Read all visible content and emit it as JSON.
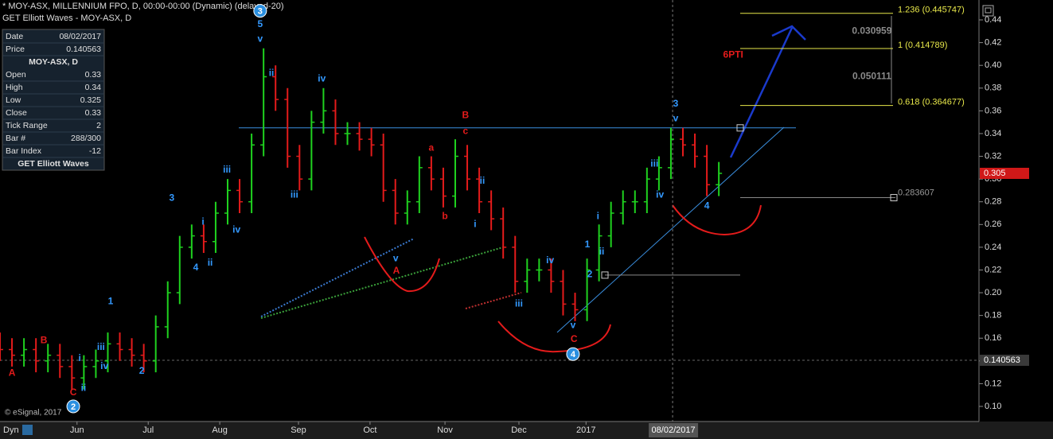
{
  "chart_data": {
    "type": "ohlc",
    "title": "* MOY-ASX, MILLENNIUM FPO, D, 00:00-00:00 (Dynamic) (delayed-20)",
    "subtitle": "GET Elliott Waves - MOY-ASX, D",
    "x": [
      0,
      3.5,
      7,
      10.5,
      14,
      17.5,
      21,
      24.5,
      28,
      31.5,
      35,
      38.5,
      42,
      45.5,
      49,
      52.5,
      56,
      59.5,
      63,
      66.5,
      70,
      73.5,
      77,
      80.5,
      84,
      87.5,
      91,
      94.5,
      98,
      101.5,
      105,
      108.5,
      112,
      115.5,
      119,
      122.5,
      126,
      129.5,
      133,
      136.5,
      140,
      143.5,
      147,
      150.5,
      154,
      157.5,
      161,
      164.5,
      168,
      171.5,
      175,
      178.5,
      182,
      185.5,
      189,
      192.5,
      196,
      199.5,
      203,
      206.5,
      210
    ],
    "open": [
      0.155,
      0.15,
      0.145,
      0.15,
      0.14,
      0.145,
      0.135,
      0.125,
      0.135,
      0.14,
      0.155,
      0.15,
      0.145,
      0.14,
      0.17,
      0.2,
      0.24,
      0.25,
      0.245,
      0.27,
      0.29,
      0.28,
      0.33,
      0.39,
      0.37,
      0.32,
      0.3,
      0.35,
      0.36,
      0.34,
      0.34,
      0.335,
      0.33,
      0.29,
      0.27,
      0.28,
      0.31,
      0.3,
      0.285,
      0.32,
      0.3,
      0.28,
      0.265,
      0.24,
      0.21,
      0.22,
      0.22,
      0.21,
      0.19,
      0.185,
      0.22,
      0.25,
      0.27,
      0.28,
      0.28,
      0.3,
      0.31,
      0.335,
      0.33,
      0.32,
      0.295
    ],
    "high": [
      0.165,
      0.16,
      0.16,
      0.16,
      0.155,
      0.155,
      0.145,
      0.145,
      0.15,
      0.165,
      0.165,
      0.16,
      0.155,
      0.18,
      0.21,
      0.25,
      0.26,
      0.26,
      0.28,
      0.3,
      0.3,
      0.34,
      0.415,
      0.4,
      0.38,
      0.33,
      0.36,
      0.38,
      0.37,
      0.35,
      0.35,
      0.345,
      0.34,
      0.3,
      0.29,
      0.32,
      0.32,
      0.31,
      0.335,
      0.33,
      0.31,
      0.29,
      0.275,
      0.25,
      0.23,
      0.23,
      0.23,
      0.22,
      0.2,
      0.23,
      0.26,
      0.28,
      0.29,
      0.29,
      0.31,
      0.32,
      0.345,
      0.345,
      0.34,
      0.33,
      0.315
    ],
    "low": [
      0.14,
      0.135,
      0.135,
      0.13,
      0.13,
      0.125,
      0.115,
      0.115,
      0.125,
      0.13,
      0.14,
      0.135,
      0.13,
      0.13,
      0.16,
      0.19,
      0.23,
      0.235,
      0.235,
      0.26,
      0.27,
      0.27,
      0.32,
      0.36,
      0.31,
      0.29,
      0.29,
      0.34,
      0.33,
      0.33,
      0.325,
      0.32,
      0.28,
      0.26,
      0.26,
      0.27,
      0.29,
      0.275,
      0.275,
      0.29,
      0.27,
      0.255,
      0.23,
      0.2,
      0.2,
      0.21,
      0.2,
      0.18,
      0.175,
      0.175,
      0.21,
      0.24,
      0.26,
      0.27,
      0.27,
      0.29,
      0.3,
      0.32,
      0.31,
      0.285,
      0.285
    ],
    "close": [
      0.15,
      0.145,
      0.15,
      0.14,
      0.145,
      0.135,
      0.125,
      0.135,
      0.14,
      0.155,
      0.15,
      0.145,
      0.14,
      0.17,
      0.2,
      0.24,
      0.25,
      0.245,
      0.27,
      0.29,
      0.28,
      0.33,
      0.39,
      0.37,
      0.32,
      0.3,
      0.35,
      0.36,
      0.34,
      0.34,
      0.335,
      0.33,
      0.29,
      0.27,
      0.28,
      0.31,
      0.3,
      0.285,
      0.32,
      0.3,
      0.28,
      0.265,
      0.24,
      0.21,
      0.22,
      0.22,
      0.21,
      0.19,
      0.185,
      0.22,
      0.25,
      0.27,
      0.28,
      0.28,
      0.3,
      0.31,
      0.335,
      0.33,
      0.32,
      0.295,
      0.305
    ],
    "up_color": "#1fd21f",
    "down_color": "#e41b1b",
    "xlim": [
      0,
      286
    ],
    "ylim": [
      0.0867,
      0.4575
    ],
    "xticks": [
      {
        "value": 22.5,
        "label": "Jun"
      },
      {
        "value": 43.3,
        "label": "Jul"
      },
      {
        "value": 64.2,
        "label": "Aug"
      },
      {
        "value": 87.2,
        "label": "Sep"
      },
      {
        "value": 108.1,
        "label": "Oct"
      },
      {
        "value": 130,
        "label": "Nov"
      },
      {
        "value": 151.6,
        "label": "Dec"
      },
      {
        "value": 171.2,
        "label": "2017"
      }
    ],
    "yticks": [
      0.44,
      0.42,
      {
        "value": 0.4,
        "label": "0.40"
      },
      0.38,
      0.36,
      0.34,
      0.32,
      {
        "value": 0.3,
        "label": "0.30"
      },
      0.28,
      0.26,
      0.24,
      0.22,
      {
        "value": 0.2,
        "label": "0.20"
      },
      0.18,
      0.16,
      0.14,
      0.12,
      {
        "value": 0.1,
        "label": "0.10"
      }
    ],
    "cursor_x": 196.5,
    "cursor_label": "08/02/2017",
    "resistance": 0.345,
    "support_level": 0.2155,
    "level": 0.283607,
    "last_price": 0.140563,
    "current_price": 0.305,
    "fib_levels": [
      {
        "value": 0.445747,
        "label": "1.236 (0.445747)"
      },
      {
        "value": 0.414789,
        "label": "1 (0.414789)"
      },
      {
        "value": 0.364677,
        "label": "0.618 (0.364677)"
      }
    ],
    "fib_color": "#e8e84a",
    "annotations": [
      {
        "text": "A",
        "x": 3.5,
        "y": 0.129,
        "color": "#e41b1b"
      },
      {
        "text": "B",
        "x": 12.8,
        "y": 0.158,
        "color": "#e41b1b"
      },
      {
        "text": "C",
        "x": 21.4,
        "y": 0.112,
        "color": "#e41b1b"
      },
      {
        "text": "i",
        "x": 23.3,
        "y": 0.142,
        "color": "#3399ff"
      },
      {
        "text": "ii",
        "x": 24.4,
        "y": 0.116,
        "color": "#3399ff"
      },
      {
        "text": "iii",
        "x": 29.5,
        "y": 0.152,
        "color": "#3399ff"
      },
      {
        "text": "iv",
        "x": 30.5,
        "y": 0.135,
        "color": "#3399ff"
      },
      {
        "text": "1",
        "x": 32.3,
        "y": 0.192,
        "color": "#3399ff"
      },
      {
        "text": "2",
        "x": 41.4,
        "y": 0.131,
        "color": "#3399ff"
      },
      {
        "text": "3",
        "x": 50.2,
        "y": 0.283,
        "color": "#3399ff"
      },
      {
        "text": "4",
        "x": 57.2,
        "y": 0.222,
        "color": "#3399ff"
      },
      {
        "text": "i",
        "x": 59.3,
        "y": 0.262,
        "color": "#3399ff"
      },
      {
        "text": "ii",
        "x": 61.4,
        "y": 0.226,
        "color": "#3399ff"
      },
      {
        "text": "iii",
        "x": 66.3,
        "y": 0.308,
        "color": "#3399ff"
      },
      {
        "text": "iv",
        "x": 69.1,
        "y": 0.255,
        "color": "#3399ff"
      },
      {
        "text": "5",
        "x": 76,
        "y": 0.436,
        "color": "#3399ff"
      },
      {
        "text": "v",
        "x": 76,
        "y": 0.423,
        "color": "#3399ff"
      },
      {
        "text": "ii",
        "x": 79.3,
        "y": 0.393,
        "color": "#3399ff"
      },
      {
        "text": "iii",
        "x": 86,
        "y": 0.286,
        "color": "#3399ff"
      },
      {
        "text": "iv",
        "x": 94,
        "y": 0.388,
        "color": "#3399ff"
      },
      {
        "text": "a",
        "x": 126,
        "y": 0.327,
        "color": "#e41b1b"
      },
      {
        "text": "B",
        "x": 136,
        "y": 0.356,
        "color": "#e41b1b"
      },
      {
        "text": "c",
        "x": 136,
        "y": 0.342,
        "color": "#e41b1b"
      },
      {
        "text": "b",
        "x": 130,
        "y": 0.267,
        "color": "#e41b1b"
      },
      {
        "text": "i",
        "x": 138.8,
        "y": 0.26,
        "color": "#3399ff"
      },
      {
        "text": "ii",
        "x": 140.9,
        "y": 0.298,
        "color": "#3399ff"
      },
      {
        "text": "v",
        "x": 115.6,
        "y": 0.23,
        "color": "#3399ff"
      },
      {
        "text": "A",
        "x": 115.8,
        "y": 0.219,
        "color": "#e41b1b"
      },
      {
        "text": "iii",
        "x": 151.6,
        "y": 0.19,
        "color": "#3399ff"
      },
      {
        "text": "iv",
        "x": 160.7,
        "y": 0.228,
        "color": "#3399ff"
      },
      {
        "text": "v",
        "x": 167.4,
        "y": 0.171,
        "color": "#3399ff"
      },
      {
        "text": "C",
        "x": 167.7,
        "y": 0.159,
        "color": "#e41b1b"
      },
      {
        "text": "1",
        "x": 171.6,
        "y": 0.242,
        "color": "#3399ff"
      },
      {
        "text": "2",
        "x": 172.3,
        "y": 0.216,
        "color": "#3399ff"
      },
      {
        "text": "i",
        "x": 174.7,
        "y": 0.267,
        "color": "#3399ff"
      },
      {
        "text": "ii",
        "x": 175.8,
        "y": 0.236,
        "color": "#3399ff"
      },
      {
        "text": "iii",
        "x": 191.2,
        "y": 0.313,
        "color": "#3399ff"
      },
      {
        "text": "iv",
        "x": 192.8,
        "y": 0.286,
        "color": "#3399ff"
      },
      {
        "text": "3",
        "x": 197.4,
        "y": 0.366,
        "color": "#3399ff"
      },
      {
        "text": "v",
        "x": 197.4,
        "y": 0.353,
        "color": "#3399ff"
      },
      {
        "text": "4",
        "x": 206.5,
        "y": 0.276,
        "color": "#3399ff"
      },
      {
        "text": "6PTI",
        "x": 214.2,
        "y": 0.409,
        "color": "#e41b1b"
      },
      {
        "text": "0.030959",
        "x": 254.7,
        "y": 0.43,
        "color": "#8a8a8a"
      },
      {
        "text": "0.050111",
        "x": 254.7,
        "y": 0.39,
        "color": "#8a8a8a"
      }
    ],
    "circle_markers": [
      {
        "text": "3",
        "x": 76,
        "y": 0.448
      },
      {
        "text": "2",
        "x": 21.4,
        "y": 0.1
      },
      {
        "text": "4",
        "x": 167.4,
        "y": 0.146
      }
    ],
    "circle_color": "#2a8fe0"
  },
  "info_panel": {
    "rows_top": [
      [
        "Date",
        "08/02/2017"
      ],
      [
        "Price",
        "0.140563"
      ]
    ],
    "title": "MOY-ASX, D",
    "rows": [
      [
        "Open",
        "0.33"
      ],
      [
        "High",
        "0.34"
      ],
      [
        "Low",
        "0.325"
      ],
      [
        "Close",
        "0.33"
      ],
      [
        "Tick Range",
        "2"
      ],
      [
        "Bar #",
        "288/300"
      ],
      [
        "Bar Index",
        "-12"
      ]
    ],
    "footer": "GET Elliott Waves"
  },
  "footer": {
    "copyright": "© eSignal, 2017",
    "mode": "Dyn"
  }
}
